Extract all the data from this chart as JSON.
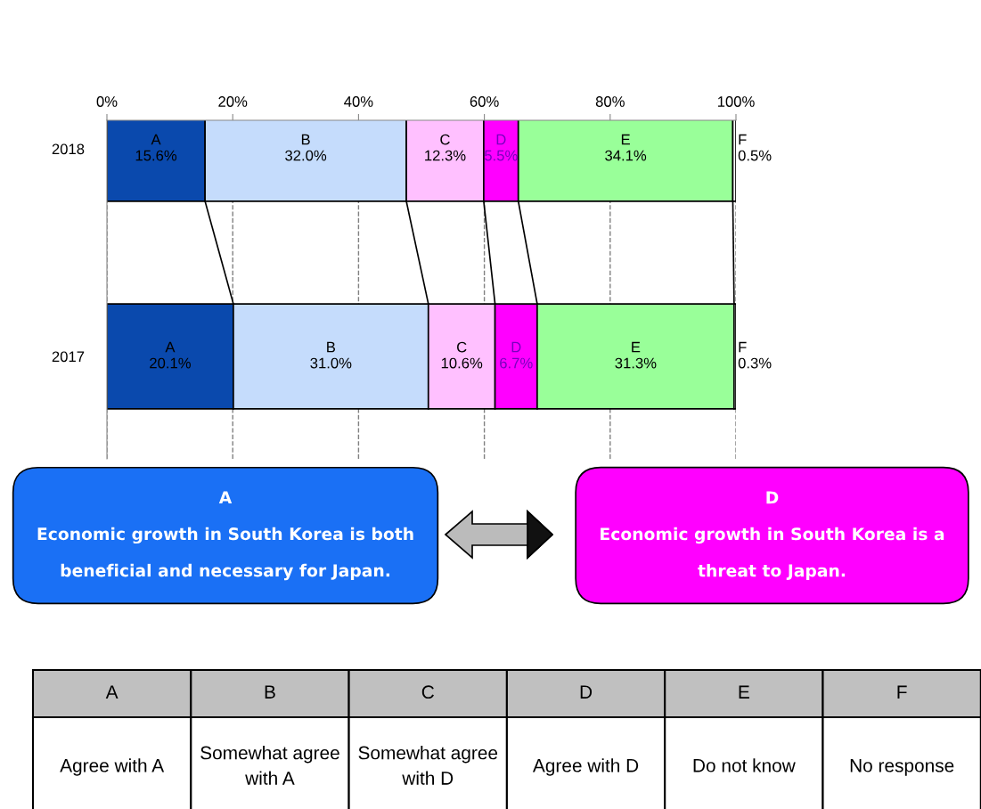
{
  "chart_data": {
    "type": "bar",
    "orientation": "horizontal",
    "stacked": true,
    "categories": [
      "2018",
      "2017"
    ],
    "series": [
      {
        "name": "A",
        "color": "#0a49ad",
        "values": [
          15.6,
          20.1
        ],
        "value_labels": [
          "15.6%",
          "20.1%"
        ]
      },
      {
        "name": "B",
        "color": "#c5dcfc",
        "values": [
          32.0,
          31.0
        ],
        "value_labels": [
          "32.0%",
          "31.0%"
        ]
      },
      {
        "name": "C",
        "color": "#ffc0ff",
        "values": [
          12.3,
          10.6
        ],
        "value_labels": [
          "12.3%",
          "10.6%"
        ]
      },
      {
        "name": "D",
        "color": "#ff00ff",
        "values": [
          5.5,
          6.7
        ],
        "value_labels": [
          "5.5%",
          "6.7%"
        ]
      },
      {
        "name": "E",
        "color": "#99ff99",
        "values": [
          34.1,
          31.3
        ],
        "value_labels": [
          "34.1%",
          "31.3%"
        ]
      },
      {
        "name": "F",
        "color": "#ffffff",
        "values": [
          0.5,
          0.3
        ],
        "value_labels": [
          "0.5%",
          "0.3%"
        ]
      }
    ],
    "xlim": [
      0,
      100
    ],
    "xticks": [
      {
        "value": 0,
        "label": "0%"
      },
      {
        "value": 20,
        "label": "20%"
      },
      {
        "value": 40,
        "label": "40%"
      },
      {
        "value": 60,
        "label": "60%"
      },
      {
        "value": 80,
        "label": "80%"
      },
      {
        "value": 100,
        "label": "100%"
      }
    ],
    "grid": "x",
    "annotations": [
      "A",
      "Economic growth in South Korea is both beneficial and necessary for Japan.",
      "D",
      "Economic growth in South Korea is a threat to Japan.",
      "Agree with A",
      "Somewhat agree with A",
      "Somewhat agree with D",
      "Agree with D",
      "Do not know",
      "No response"
    ]
  }
}
